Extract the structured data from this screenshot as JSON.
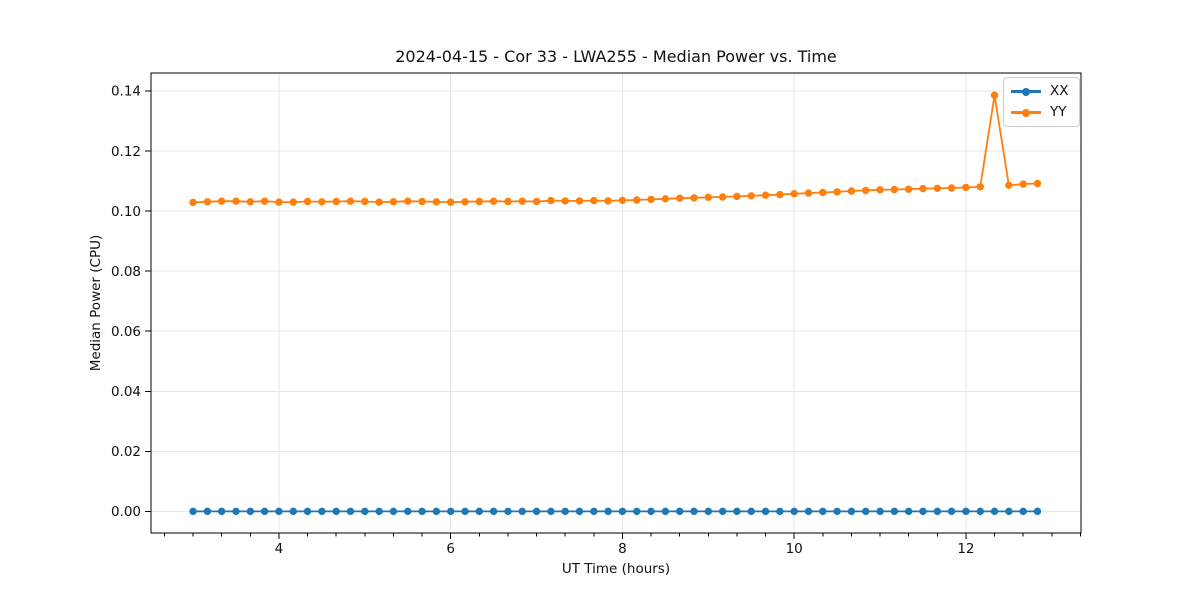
{
  "figure": {
    "background": "#ffffff"
  },
  "colors": {
    "grid": "#e6e6e6",
    "spine": "#000000",
    "tick": "#000000",
    "text": "#111111",
    "legend_border": "#cccccc",
    "series_blue": "#1f77b4",
    "series_orange": "#ff7f0e"
  },
  "chart_data": {
    "type": "line",
    "title": "2024-04-15 - Cor 33 - LWA255 - Median Power vs. Time",
    "xlabel": "UT Time (hours)",
    "ylabel": "Median Power (CPU)",
    "xlim": [
      2.51,
      13.34
    ],
    "ylim": [
      -0.0072,
      0.146
    ],
    "grid": true,
    "legend_position": "upper right",
    "x_ticks": {
      "values": [
        4,
        6,
        8,
        10,
        12
      ],
      "labels": [
        "4",
        "6",
        "8",
        "10",
        "12"
      ]
    },
    "x_minor_ticks": [
      2.667,
      3.0,
      3.333,
      3.667,
      4.333,
      4.667,
      5.0,
      5.333,
      5.667,
      6.333,
      6.667,
      7.0,
      7.333,
      7.667,
      8.333,
      8.667,
      9.0,
      9.333,
      9.667,
      10.333,
      10.667,
      11.0,
      11.333,
      11.667,
      12.333,
      12.667,
      13.0,
      13.333
    ],
    "y_ticks": {
      "values": [
        0.0,
        0.02,
        0.04,
        0.06,
        0.08,
        0.1,
        0.12,
        0.14
      ],
      "labels": [
        "0.00",
        "0.02",
        "0.04",
        "0.06",
        "0.08",
        "0.10",
        "0.12",
        "0.14"
      ]
    },
    "x": [
      3.0,
      3.167,
      3.333,
      3.5,
      3.667,
      3.833,
      4.0,
      4.167,
      4.333,
      4.5,
      4.667,
      4.833,
      5.0,
      5.167,
      5.333,
      5.5,
      5.667,
      5.833,
      6.0,
      6.167,
      6.333,
      6.5,
      6.667,
      6.833,
      7.0,
      7.167,
      7.333,
      7.5,
      7.667,
      7.833,
      8.0,
      8.167,
      8.333,
      8.5,
      8.667,
      8.833,
      9.0,
      9.167,
      9.333,
      9.5,
      9.667,
      9.833,
      10.0,
      10.167,
      10.333,
      10.5,
      10.667,
      10.833,
      11.0,
      11.167,
      11.333,
      11.5,
      11.667,
      11.833,
      12.0,
      12.167,
      12.333,
      12.5,
      12.667,
      12.833
    ],
    "series": [
      {
        "name": "XX",
        "color": "#1f77b4",
        "values": [
          0.0,
          0.0,
          0.0,
          0.0,
          0.0,
          0.0,
          0.0,
          0.0,
          0.0,
          0.0,
          0.0,
          0.0,
          0.0,
          0.0,
          0.0,
          0.0,
          0.0,
          0.0,
          0.0,
          0.0,
          0.0,
          0.0,
          0.0,
          0.0,
          0.0,
          0.0,
          0.0,
          0.0,
          0.0,
          0.0,
          0.0,
          0.0,
          0.0,
          0.0,
          0.0,
          0.0,
          0.0,
          0.0,
          0.0,
          0.0,
          0.0,
          0.0,
          0.0,
          0.0,
          0.0,
          0.0,
          0.0,
          0.0,
          0.0,
          0.0,
          0.0,
          0.0,
          0.0,
          0.0,
          0.0,
          0.0,
          0.0,
          0.0,
          0.0,
          0.0
        ]
      },
      {
        "name": "YY",
        "color": "#ff7f0e",
        "values": [
          0.1029,
          0.1031,
          0.1033,
          0.1033,
          0.1031,
          0.1033,
          0.103,
          0.103,
          0.1032,
          0.1031,
          0.1032,
          0.1033,
          0.1032,
          0.103,
          0.1031,
          0.1033,
          0.1032,
          0.1031,
          0.103,
          0.1031,
          0.1032,
          0.1033,
          0.1032,
          0.1033,
          0.1032,
          0.1035,
          0.1034,
          0.1034,
          0.1035,
          0.1034,
          0.1036,
          0.1037,
          0.1039,
          0.1041,
          0.1043,
          0.1044,
          0.1046,
          0.1047,
          0.1049,
          0.1051,
          0.1053,
          0.1055,
          0.1058,
          0.106,
          0.1062,
          0.1064,
          0.1067,
          0.1069,
          0.1071,
          0.1072,
          0.1073,
          0.1075,
          0.1076,
          0.1077,
          0.1079,
          0.1081,
          0.1386,
          0.1086,
          0.109,
          0.1092
        ]
      }
    ]
  }
}
